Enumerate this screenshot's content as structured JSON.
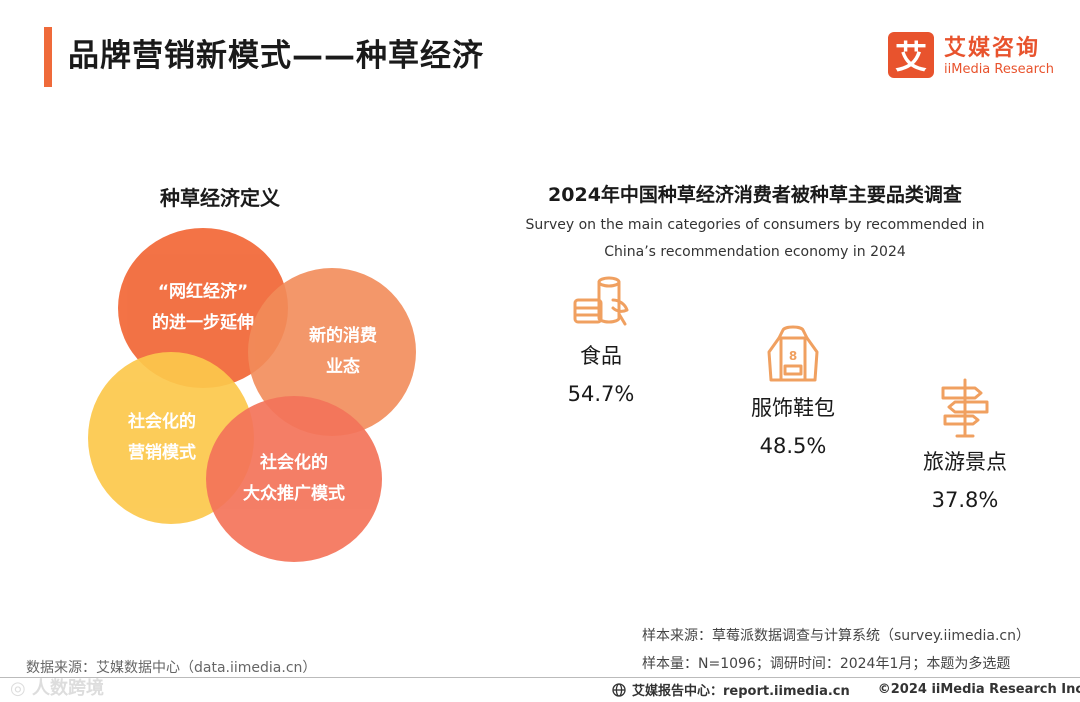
{
  "header": {
    "title": "品牌营销新模式——种草经济",
    "accent_color": "#ef6a3a"
  },
  "logo": {
    "glyph": "艾",
    "name_cn": "艾媒咨询",
    "name_en": "iiMedia Research",
    "brand_color": "#e8532d"
  },
  "definition": {
    "title": "种草经济定义",
    "circles": [
      {
        "line1": "“网红经济”",
        "line2": "的进一步延伸",
        "color": "#f26b3c"
      },
      {
        "line1": "新的消费",
        "line2": "业态",
        "color": "#f28c5a"
      },
      {
        "line1": "社会化的",
        "line2": "营销模式",
        "color": "#fcc84c"
      },
      {
        "line1": "社会化的",
        "line2": "大众推广模式",
        "color": "#f4745a"
      }
    ]
  },
  "survey": {
    "title": "2024年中国种草经济消费者被种草主要品类调查",
    "subtitle_line1": "Survey on the main categories of consumers by recommended in",
    "subtitle_line2": "China’s recommendation economy in 2024",
    "categories": [
      {
        "name": "食品",
        "value": "54.7%",
        "icon": "food-can-icon"
      },
      {
        "name": "服饰鞋包",
        "value": "48.5%",
        "icon": "hoodie-icon"
      },
      {
        "name": "旅游景点",
        "value": "37.8%",
        "icon": "signpost-icon"
      }
    ],
    "icon_color": "#f0a060"
  },
  "sources": {
    "sample_source": "样本来源：草莓派数据调查与计算系统（survey.iimedia.cn）",
    "sample_size": "样本量：N=1096；调研时间：2024年1月；本题为多选题",
    "data_source": "数据来源：艾媒数据中心（data.iimedia.cn）"
  },
  "footer": {
    "report_center": "艾媒报告中心：report.iimedia.cn",
    "copyright": "©2024  iiMedia Research  Inc"
  },
  "watermark": "◎ 人数跨境"
}
